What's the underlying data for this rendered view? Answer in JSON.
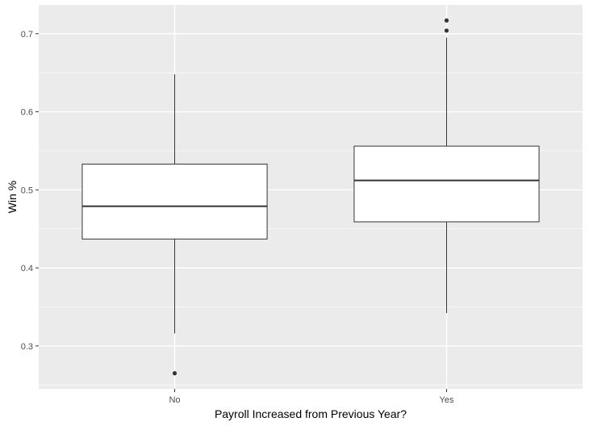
{
  "chart_data": {
    "type": "boxplot",
    "xlabel": "Payroll Increased from Previous Year?",
    "ylabel": "Win %",
    "ylim": [
      0.245,
      0.737
    ],
    "y_ticks": [
      0.3,
      0.4,
      0.5,
      0.6,
      0.7
    ],
    "y_tick_labels": [
      "0.3",
      "0.4",
      "0.5",
      "0.6",
      "0.7"
    ],
    "categories": [
      "No",
      "Yes"
    ],
    "boxes": [
      {
        "category": "No",
        "whisker_low": 0.316,
        "q1": 0.437,
        "median": 0.479,
        "q3": 0.533,
        "whisker_high": 0.648,
        "outliers": [
          0.265
        ]
      },
      {
        "category": "Yes",
        "whisker_low": 0.342,
        "q1": 0.459,
        "median": 0.512,
        "q3": 0.556,
        "whisker_high": 0.695,
        "outliers": [
          0.704,
          0.717
        ]
      }
    ],
    "grid": true,
    "legend": "none",
    "colors": {
      "panel": "#ebebeb",
      "grid": "#ffffff",
      "box_fill": "#ffffff",
      "box_stroke": "#333333",
      "point": "#333333"
    }
  }
}
